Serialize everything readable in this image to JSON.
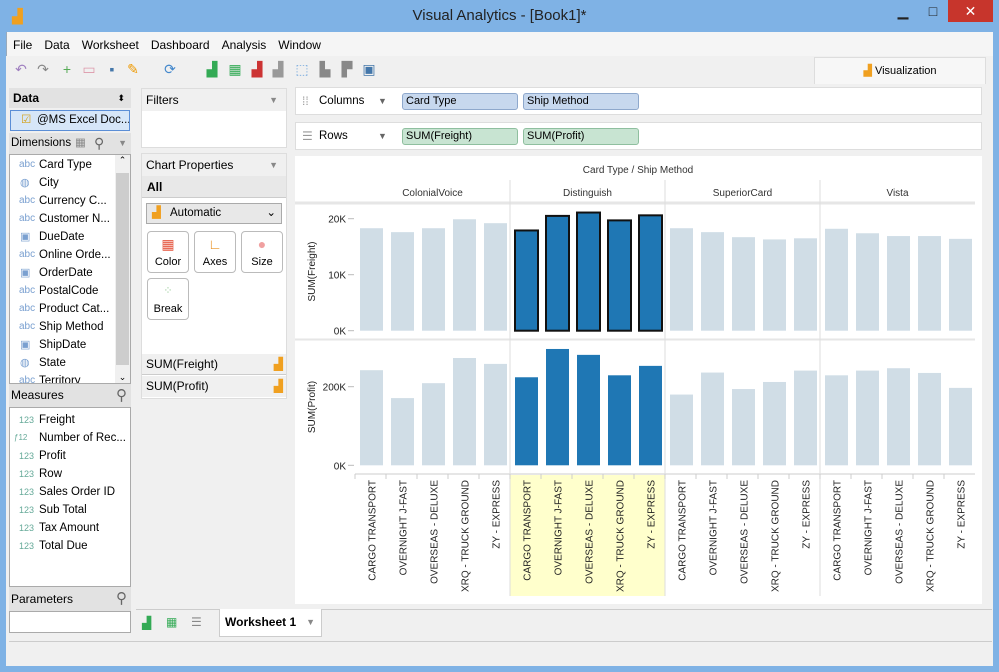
{
  "window": {
    "title": "Visual Analytics - [Book1]*",
    "minimize": "▁",
    "maximize": "□",
    "close": "✕"
  },
  "menu": [
    "File",
    "Data",
    "Worksheet",
    "Dashboard",
    "Analysis",
    "Window"
  ],
  "toolbar_icons": [
    "undo-icon",
    "redo-icon",
    "new-icon",
    "open-icon",
    "save-icon",
    "connect-icon",
    "refresh-icon",
    "new-chart-icon",
    "new-dashboard-icon",
    "delete-chart-icon",
    "clear-chart-icon",
    "lasso-icon",
    "sort-asc-icon",
    "sort-desc-icon",
    "show-me-icon"
  ],
  "visualization_tab": "Visualization",
  "data_panel": {
    "title": "Data",
    "source": "@MS Excel Doc...",
    "dimensions_label": "Dimensions",
    "dimensions": [
      {
        "type": "abc",
        "name": "Card Type"
      },
      {
        "type": "geo",
        "name": "City"
      },
      {
        "type": "abc",
        "name": "Currency C..."
      },
      {
        "type": "abc",
        "name": "Customer N..."
      },
      {
        "type": "date",
        "name": "DueDate"
      },
      {
        "type": "abc",
        "name": "Online Orde..."
      },
      {
        "type": "date",
        "name": "OrderDate"
      },
      {
        "type": "abc",
        "name": "PostalCode"
      },
      {
        "type": "abc",
        "name": "Product Cat..."
      },
      {
        "type": "abc",
        "name": "Ship Method"
      },
      {
        "type": "date",
        "name": "ShipDate"
      },
      {
        "type": "geo",
        "name": "State"
      },
      {
        "type": "abc",
        "name": "Territory"
      }
    ],
    "measures_label": "Measures",
    "measures": [
      {
        "type": "123",
        "name": "Freight"
      },
      {
        "type": "f123",
        "name": "Number of Rec..."
      },
      {
        "type": "123",
        "name": "Profit"
      },
      {
        "type": "123",
        "name": "Row"
      },
      {
        "type": "123",
        "name": "Sales Order ID"
      },
      {
        "type": "123",
        "name": "Sub Total"
      },
      {
        "type": "123",
        "name": "Tax Amount"
      },
      {
        "type": "123",
        "name": "Total Due"
      }
    ],
    "parameters_label": "Parameters"
  },
  "filters": {
    "title": "Filters"
  },
  "chart_properties": {
    "title": "Chart Properties",
    "tab": "All",
    "mark_type": "Automatic",
    "buttons": [
      "Color",
      "Axes",
      "Size",
      "Break"
    ],
    "measures": [
      "SUM(Freight)",
      "SUM(Profit)"
    ]
  },
  "shelves": {
    "columns_label": "Columns",
    "columns": [
      "Card Type",
      "Ship Method"
    ],
    "rows_label": "Rows",
    "rows": [
      "SUM(Freight)",
      "SUM(Profit)"
    ]
  },
  "sheet_tabs": {
    "active": "Worksheet 1"
  },
  "colors": {
    "highlight": "#1f77b4",
    "dim": "#d0dde6",
    "selection_bg": "#ffffcc"
  },
  "chart_data": {
    "type": "bar",
    "title": "Card Type / Ship Method",
    "columns": [
      "ColonialVoice",
      "Distinguish",
      "SuperiorCard",
      "Vista"
    ],
    "categories": [
      "CARGO TRANSPORT",
      "OVERNIGHT J-FAST",
      "OVERSEAS - DELUXE",
      "XRQ - TRUCK GROUND",
      "ZY - EXPRESS"
    ],
    "highlighted": "Distinguish",
    "rows": [
      {
        "ylabel": "SUM(Freight)",
        "ticks": [
          "0K",
          "10K",
          "20K"
        ],
        "tick_values": [
          0,
          10000,
          20000
        ],
        "ylim": [
          0,
          22400
        ],
        "values": [
          [
            18300,
            17600,
            18300,
            19900,
            19200
          ],
          [
            17900,
            20500,
            21100,
            19700,
            20600
          ],
          [
            18300,
            17600,
            16700,
            16300,
            16500
          ],
          [
            18200,
            17400,
            16900,
            16900,
            16400
          ]
        ]
      },
      {
        "ylabel": "SUM(Profit)",
        "ticks": [
          "0K",
          "200K"
        ],
        "tick_values": [
          0,
          200000
        ],
        "ylim": [
          0,
          318000
        ],
        "values": [
          [
            242000,
            171000,
            209000,
            273000,
            258000
          ],
          [
            224000,
            296000,
            281000,
            229000,
            253000
          ],
          [
            180000,
            236000,
            194000,
            212000,
            241000
          ],
          [
            229000,
            241000,
            247000,
            235000,
            197000
          ]
        ]
      }
    ]
  }
}
